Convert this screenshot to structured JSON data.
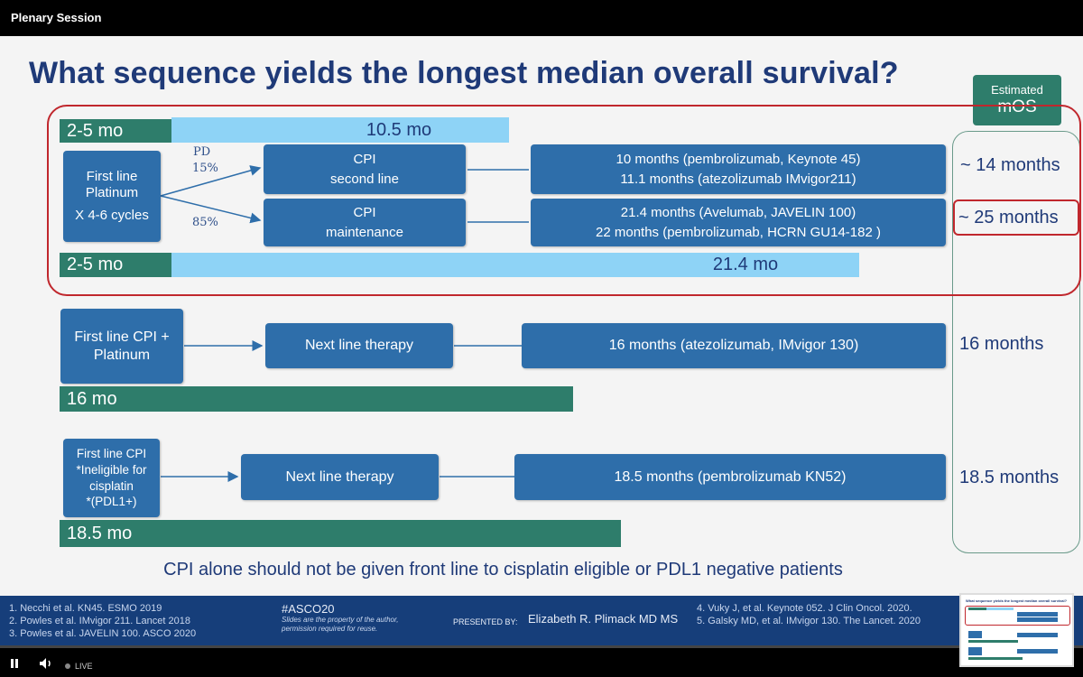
{
  "window": {
    "title": "Plenary Session"
  },
  "slide": {
    "title": "What sequence yields the longest median overall survival?",
    "estimated_header": {
      "line1": "Estimated",
      "line2": "mOS"
    },
    "top_block": {
      "bar_top_green": "2-5 mo",
      "bar_top_blue": "10.5 mo",
      "first_line_box": [
        "First line",
        "Platinum",
        "X 4-6 cycles"
      ],
      "pd_label": "PD",
      "pct_15": "15%",
      "pct_85": "85%",
      "cpi_second": [
        "CPI",
        "second line"
      ],
      "cpi_maintenance": [
        "CPI",
        "maintenance"
      ],
      "result_second": [
        "10 months (pembrolizumab, Keynote 45)",
        "11.1 months (atezolizumab IMvigor211)"
      ],
      "result_maintenance": [
        "21.4 months (Avelumab, JAVELIN 100)",
        "22 months (pembrolizumab, HCRN GU14-182 )"
      ],
      "bar_bottom_green": "2-5 mo",
      "bar_bottom_blue": "21.4 mo",
      "mos_second": "~ 14 months",
      "mos_maintenance": "~ 25 months"
    },
    "middle_block": {
      "first_line_box": [
        "First line CPI +",
        "Platinum"
      ],
      "next_line": "Next line therapy",
      "result": "16 months (atezolizumab, IMvigor 130)",
      "bar": "16 mo",
      "mos": "16 months"
    },
    "lower_block": {
      "first_line_box": [
        "First line CPI",
        "*Ineligible for",
        "cisplatin",
        "*(PDL1+)"
      ],
      "next_line": "Next line therapy",
      "result": "18.5 months (pembrolizumab KN52)",
      "bar": "18.5 mo",
      "mos": "18.5 months"
    },
    "bottom_note": "CPI alone should not be given front line to cisplatin eligible or PDL1 negative patients"
  },
  "footer": {
    "refs_left": [
      "1.   Necchi et al. KN45. ESMO 2019",
      "2.   Powles et al. IMvigor 211. Lancet 2018",
      "3.   Powles et al. JAVELIN 100. ASCO 2020"
    ],
    "hashtag": "#ASCO20",
    "notice": [
      "Slides are the property of the author,",
      "permission required for reuse."
    ],
    "presented_by_label": "PRESENTED BY:",
    "presenter": "Elizabeth R. Plimack MD MS",
    "refs_right": [
      "4.   Vuky J, et al. Keynote 052. J Clin Oncol. 2020.",
      "5.   Galsky MD, et al. IMvigor 130. The Lancet. 2020"
    ]
  },
  "player": {
    "live_label": "LIVE"
  },
  "thumbnail": {
    "title": "What sequence yields the longest median overall survival?"
  },
  "colors": {
    "title": "#1f3a78",
    "box": "#2e6eaa",
    "green": "#2e7d6b",
    "light_blue": "#8ed3f6",
    "highlight": "#c0272d",
    "footer": "#163e7a"
  }
}
